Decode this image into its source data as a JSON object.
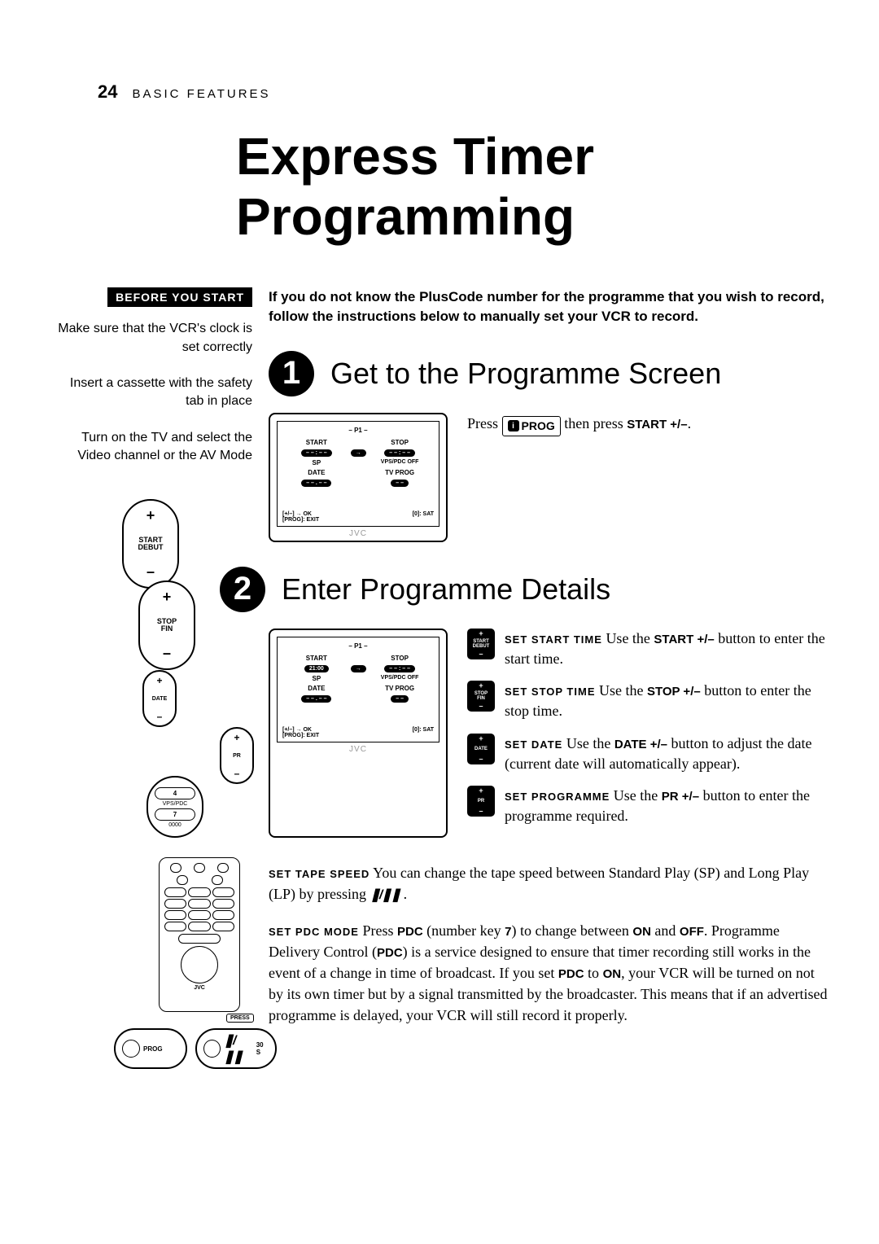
{
  "page_number": "24",
  "section": "BASIC FEATURES",
  "title": "Express Timer Programming",
  "before_you_start": {
    "label": "BEFORE YOU START",
    "notes": [
      "Make sure that the VCR's clock is set correctly",
      "Insert a cassette with the safety tab in place",
      "Turn on the TV and select the Video channel or the AV Mode"
    ]
  },
  "intro": "If you do not know the PlusCode number for the programme that you wish to record, follow the instructions below to manually set your VCR to record.",
  "steps": {
    "step1": {
      "num": "1",
      "title": "Get to the Programme Screen",
      "instruction_pre": "Press ",
      "prog_key": "PROG",
      "instruction_mid": " then press ",
      "btn": "START +/–",
      "instruction_post": "."
    },
    "step2": {
      "num": "2",
      "title": "Enter Programme Details",
      "items": [
        {
          "btn_top": "+",
          "btn_label": "START\nDEBUT",
          "btn_bot": "–",
          "caps": "SET START TIME",
          "text_pre": "  Use the  ",
          "key": "START +/–",
          "text_post": " button to enter the start time."
        },
        {
          "btn_top": "+",
          "btn_label": "STOP\nFIN",
          "btn_bot": "–",
          "caps": "SET STOP TIME",
          "text_pre": "  Use the ",
          "key": "STOP +/–",
          "text_post": " button to enter the stop time."
        },
        {
          "btn_top": "+",
          "btn_label": "DATE",
          "btn_bot": "–",
          "caps": "SET DATE",
          "text_pre": "  Use the ",
          "key": "DATE +/–",
          "text_post": " button to adjust the date (current date will automatically appear)."
        },
        {
          "btn_top": "+",
          "btn_label": "PR",
          "btn_bot": "–",
          "caps": "SET PROGRAMME",
          "text_pre": "  Use the ",
          "key": "PR +/–",
          "text_post": " button to enter the programme required."
        }
      ],
      "tape_speed": {
        "caps": "SET TAPE SPEED",
        "text_pre": "  You can change the tape speed between Standard Play (SP) and Long Play (LP) by pressing ",
        "icon": "❚/❚❚",
        "text_post": " ."
      },
      "pdc": {
        "caps": "SET PDC MODE",
        "text": "  Press PDC (number key 7) to change between ON and OFF. Programme Delivery Control (PDC) is a service designed to ensure that timer recording still works in the event of a change in time of broadcast. If you set PDC to ON, your VCR will be turned on not by its own timer but by a signal transmitted by the broadcaster. This means that if an advertised programme is delayed, your VCR will still record it properly."
      }
    }
  },
  "tv_screen": {
    "header": "– P1 –",
    "start_label": "START",
    "start_val1": "– – : – –",
    "start_val2": "21:00",
    "stop_label": "STOP",
    "stop_val": "– – : – –",
    "sp": "SP",
    "vps": "VPS/PDC OFF",
    "date": "DATE",
    "tvprog": "TV PROG",
    "date_val": "– – . – –",
    "prog_val": "– –",
    "footer_l": "[+/–] → OK\n[PROG]: EXIT",
    "footer_r": "[0]: SAT",
    "logo": "JVC"
  },
  "remote": {
    "start_debut": "START\nDEBUT",
    "stop_fin": "STOP\nFIN",
    "date": "DATE",
    "pr": "PR",
    "num4": "4",
    "vpspdc": "VPS/PDC",
    "num7": "7",
    "n0000": "0000",
    "jvc": "JVC",
    "press": "PRESS",
    "prog": "PROG",
    "thirty": "30 S",
    "splp": "❚/❚❚"
  },
  "colors": {
    "black": "#000000",
    "white": "#ffffff",
    "grey": "#999999"
  }
}
